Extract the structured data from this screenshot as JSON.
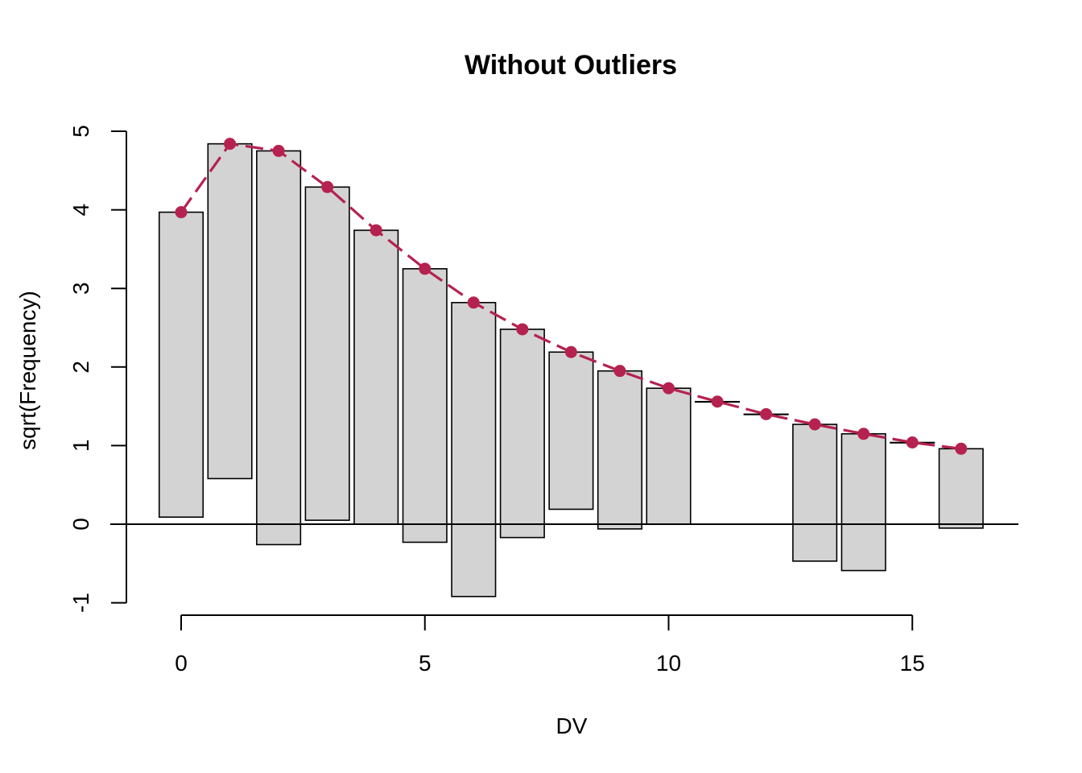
{
  "chart_data": {
    "type": "bar",
    "subtype": "hanging rootogram",
    "title": "Without Outliers",
    "xlabel": "DV",
    "ylabel": "sqrt(Frequency)",
    "xlim": [
      -1.5,
      17.3
    ],
    "ylim": [
      -1,
      5
    ],
    "x_ticks": [
      0,
      5,
      10,
      15
    ],
    "y_ticks": [
      -1,
      0,
      1,
      2,
      3,
      4,
      5
    ],
    "reference_line_y": 0,
    "grid": false,
    "bar_width": 0.9,
    "bar_fill": "#d3d3d3",
    "curve_color": "#b5224f",
    "x": [
      0,
      1,
      2,
      3,
      4,
      5,
      6,
      7,
      8,
      9,
      10,
      11,
      12,
      13,
      14,
      15,
      16
    ],
    "expected_sqrt": [
      3.97,
      4.84,
      4.75,
      4.29,
      3.74,
      3.25,
      2.82,
      2.48,
      2.19,
      1.95,
      1.73,
      1.56,
      1.4,
      1.27,
      1.15,
      1.04,
      0.96
    ],
    "observed_sqrt": [
      3.88,
      4.26,
      5.01,
      4.24,
      3.74,
      3.48,
      3.74,
      2.65,
      2.0,
      2.01,
      1.73,
      0.0,
      0.0,
      1.74,
      1.74,
      0.0,
      1.01
    ]
  }
}
